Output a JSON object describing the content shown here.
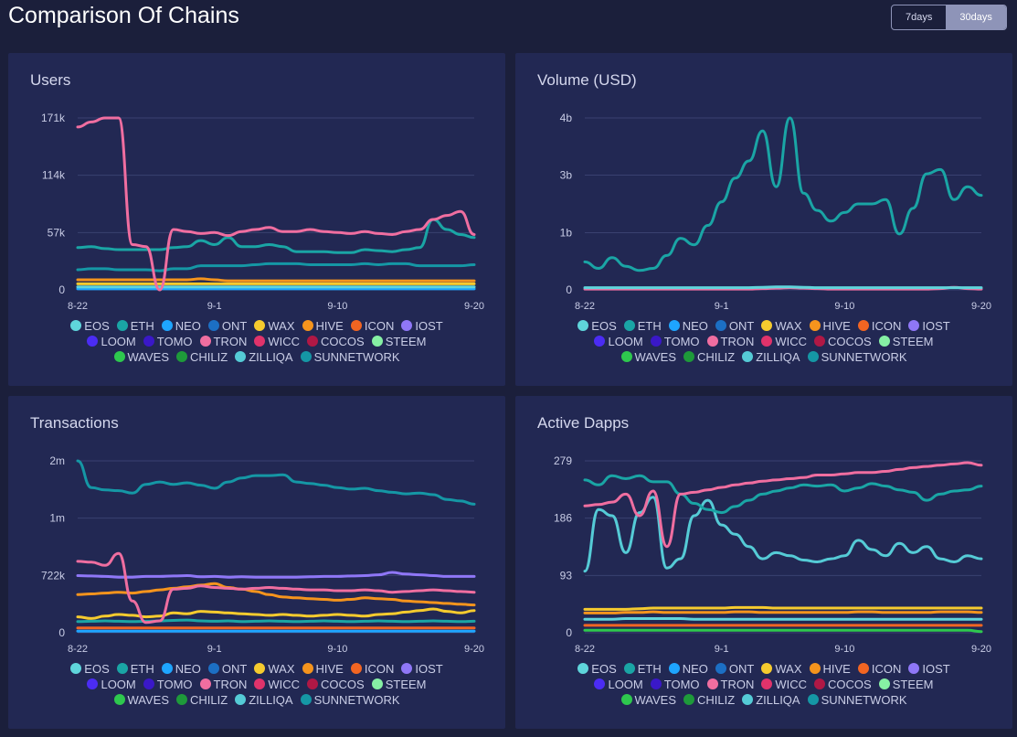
{
  "header": {
    "title": "Comparison Of Chains",
    "range_options": [
      {
        "label": "7days",
        "active": false
      },
      {
        "label": "30days",
        "active": true
      }
    ]
  },
  "legend": [
    {
      "name": "EOS",
      "color": "#5fd5db"
    },
    {
      "name": "ETH",
      "color": "#1aa5a5"
    },
    {
      "name": "NEO",
      "color": "#1ea5ff"
    },
    {
      "name": "ONT",
      "color": "#1c6fc4"
    },
    {
      "name": "WAX",
      "color": "#f6cb2e"
    },
    {
      "name": "HIVE",
      "color": "#f5941d"
    },
    {
      "name": "ICON",
      "color": "#f26522"
    },
    {
      "name": "IOST",
      "color": "#8f77f7"
    },
    {
      "name": "LOOM",
      "color": "#4b2cf4"
    },
    {
      "name": "TOMO",
      "color": "#3a18c8"
    },
    {
      "name": "TRON",
      "color": "#f06ea0"
    },
    {
      "name": "WICC",
      "color": "#e0336b"
    },
    {
      "name": "COCOS",
      "color": "#b01845"
    },
    {
      "name": "STEEM",
      "color": "#86f0a4"
    },
    {
      "name": "WAVES",
      "color": "#2ec84e"
    },
    {
      "name": "CHILIZ",
      "color": "#1e9a3a"
    },
    {
      "name": "ZILLIQA",
      "color": "#55cbd6"
    },
    {
      "name": "SUNNETWORK",
      "color": "#1597a5"
    }
  ],
  "chart_data": [
    {
      "type": "line",
      "title": "Users",
      "x_ticks": [
        "8-22",
        "9-1",
        "9-10",
        "9-20"
      ],
      "x_tick_positions": [
        0,
        10,
        19,
        29
      ],
      "x_count": 30,
      "y_ticks": [
        "171k",
        "114k",
        "57k",
        "0"
      ],
      "y_tick_values": [
        171000,
        114000,
        57000,
        0
      ],
      "ylim": [
        0,
        171000
      ],
      "series": [
        {
          "name": "TRON",
          "values": [
            162000,
            167000,
            171000,
            171000,
            45000,
            43000,
            0,
            60000,
            58000,
            56000,
            57000,
            54000,
            58000,
            60000,
            62000,
            58000,
            58000,
            60000,
            58000,
            57000,
            56000,
            58000,
            56000,
            55000,
            58000,
            60000,
            70000,
            74000,
            78000,
            55000
          ]
        },
        {
          "name": "ETH",
          "values": [
            42000,
            43000,
            41000,
            40000,
            40000,
            40000,
            40000,
            42000,
            43000,
            49000,
            45000,
            52000,
            43000,
            43000,
            45000,
            43000,
            38000,
            38000,
            38000,
            37000,
            37000,
            40000,
            39000,
            38000,
            40000,
            42000,
            70000,
            60000,
            55000,
            52000
          ]
        },
        {
          "name": "SUNNETWORK",
          "values": [
            20000,
            21000,
            21000,
            20000,
            20000,
            20000,
            19000,
            21000,
            21000,
            24000,
            24000,
            24000,
            24000,
            25000,
            26000,
            26000,
            26000,
            25000,
            25000,
            25000,
            25000,
            26000,
            25000,
            26000,
            26000,
            24000,
            24000,
            24000,
            24000,
            25000
          ]
        },
        {
          "name": "HIVE",
          "values": [
            10000,
            10000,
            10000,
            10000,
            10000,
            10000,
            10000,
            10000,
            10000,
            11000,
            10000,
            9000,
            9000,
            9000,
            9000,
            9000,
            9000,
            9000,
            9000,
            9000,
            9000,
            9000,
            9000,
            9000,
            9000,
            9000,
            9000,
            9000,
            9000,
            9000
          ]
        },
        {
          "name": "WAX",
          "values": [
            6000,
            6000,
            6000,
            6000,
            6000,
            6000,
            6000,
            6000,
            6000,
            6000,
            6000,
            6000,
            6000,
            6000,
            6000,
            6000,
            6000,
            6000,
            6000,
            6000,
            6000,
            6000,
            6000,
            6000,
            6000,
            6000,
            6000,
            6000,
            6000,
            6000
          ]
        },
        {
          "name": "EOS",
          "values": [
            3000,
            3000,
            3000,
            3000,
            3000,
            3000,
            3000,
            3000,
            3000,
            3000,
            3000,
            3000,
            3000,
            3000,
            3000,
            3000,
            3000,
            3000,
            3000,
            3000,
            3000,
            3000,
            3000,
            3000,
            3000,
            3000,
            3000,
            3000,
            3000,
            3000
          ]
        },
        {
          "name": "NEO",
          "values": [
            1000,
            1000,
            1000,
            1000,
            1000,
            1000,
            1000,
            1000,
            1000,
            1000,
            1000,
            1000,
            1000,
            1000,
            1000,
            1000,
            1000,
            1000,
            1000,
            1000,
            1000,
            1000,
            1000,
            1000,
            1000,
            1000,
            1000,
            1000,
            1000,
            1000
          ]
        }
      ]
    },
    {
      "type": "line",
      "title": "Volume (USD)",
      "x_ticks": [
        "8-22",
        "9-1",
        "9-10",
        "9-20"
      ],
      "x_tick_positions": [
        0,
        10,
        19,
        29
      ],
      "x_count": 30,
      "y_ticks": [
        "4b",
        "3b",
        "1b",
        "0"
      ],
      "y_tick_values": [
        4,
        2.67,
        1.33,
        0
      ],
      "ylim": [
        0,
        4
      ],
      "series": [
        {
          "name": "ETH",
          "values": [
            0.65,
            0.5,
            0.75,
            0.55,
            0.45,
            0.5,
            0.8,
            1.2,
            1.05,
            1.5,
            2.05,
            2.6,
            3.0,
            3.7,
            2.4,
            4.0,
            2.25,
            1.85,
            1.6,
            1.8,
            2.0,
            2.0,
            2.1,
            1.3,
            1.9,
            2.7,
            2.8,
            2.1,
            2.4,
            2.2
          ]
        },
        {
          "name": "EOS",
          "values": [
            0.05,
            0.05,
            0.05,
            0.05,
            0.05,
            0.05,
            0.05,
            0.05,
            0.05,
            0.05,
            0.05,
            0.05,
            0.05,
            0.06,
            0.07,
            0.07,
            0.06,
            0.05,
            0.05,
            0.05,
            0.05,
            0.05,
            0.05,
            0.05,
            0.05,
            0.05,
            0.05,
            0.05,
            0.05,
            0.05
          ]
        },
        {
          "name": "TRON",
          "values": [
            0.02,
            0.02,
            0.02,
            0.02,
            0.02,
            0.02,
            0.02,
            0.02,
            0.02,
            0.02,
            0.02,
            0.02,
            0.02,
            0.03,
            0.04,
            0.05,
            0.04,
            0.03,
            0.02,
            0.02,
            0.02,
            0.02,
            0.02,
            0.02,
            0.02,
            0.02,
            0.03,
            0.06,
            0.03,
            0.02
          ]
        }
      ]
    },
    {
      "type": "line",
      "title": "Transactions",
      "x_ticks": [
        "8-22",
        "9-1",
        "9-10",
        "9-20"
      ],
      "x_tick_positions": [
        0,
        10,
        19,
        29
      ],
      "x_count": 30,
      "y_ticks": [
        "2m",
        "1m",
        "722k",
        "0"
      ],
      "y_tick_values": [
        2166000,
        1444000,
        722000,
        0
      ],
      "ylim": [
        0,
        2166000
      ],
      "series": [
        {
          "name": "SUNNETWORK",
          "values": [
            2166000,
            1830000,
            1800000,
            1790000,
            1760000,
            1870000,
            1900000,
            1870000,
            1890000,
            1860000,
            1820000,
            1900000,
            1950000,
            1980000,
            1980000,
            1990000,
            1900000,
            1880000,
            1860000,
            1830000,
            1810000,
            1820000,
            1790000,
            1770000,
            1750000,
            1760000,
            1740000,
            1680000,
            1660000,
            1620000
          ]
        },
        {
          "name": "TRON",
          "values": [
            900000,
            890000,
            850000,
            1000000,
            400000,
            130000,
            150000,
            550000,
            560000,
            590000,
            570000,
            560000,
            550000,
            560000,
            570000,
            560000,
            550000,
            540000,
            540000,
            530000,
            530000,
            540000,
            530000,
            510000,
            520000,
            530000,
            540000,
            530000,
            520000,
            510000
          ]
        },
        {
          "name": "IOST",
          "values": [
            720000,
            715000,
            710000,
            700000,
            700000,
            710000,
            710000,
            715000,
            720000,
            705000,
            710000,
            700000,
            705000,
            700000,
            700000,
            700000,
            700000,
            705000,
            710000,
            710000,
            715000,
            720000,
            730000,
            760000,
            740000,
            730000,
            720000,
            710000,
            710000,
            710000
          ]
        },
        {
          "name": "HIVE",
          "values": [
            480000,
            490000,
            500000,
            510000,
            500000,
            520000,
            540000,
            560000,
            580000,
            600000,
            620000,
            570000,
            550000,
            520000,
            480000,
            450000,
            440000,
            430000,
            420000,
            410000,
            420000,
            440000,
            430000,
            420000,
            400000,
            390000,
            380000,
            370000,
            360000,
            350000
          ]
        },
        {
          "name": "WAX",
          "values": [
            200000,
            180000,
            210000,
            230000,
            220000,
            200000,
            210000,
            250000,
            240000,
            270000,
            260000,
            250000,
            240000,
            230000,
            220000,
            230000,
            220000,
            210000,
            220000,
            230000,
            220000,
            210000,
            230000,
            240000,
            260000,
            280000,
            300000,
            270000,
            250000,
            280000
          ]
        },
        {
          "name": "ETH",
          "values": [
            140000,
            145000,
            150000,
            145000,
            140000,
            145000,
            150000,
            155000,
            160000,
            150000,
            145000,
            150000,
            140000,
            145000,
            150000,
            145000,
            140000,
            145000,
            150000,
            145000,
            140000,
            145000,
            150000,
            145000,
            140000,
            145000,
            150000,
            145000,
            140000,
            145000
          ]
        },
        {
          "name": "ICON",
          "values": [
            60000,
            60000,
            60000,
            60000,
            60000,
            60000,
            60000,
            60000,
            60000,
            60000,
            60000,
            60000,
            60000,
            60000,
            60000,
            60000,
            60000,
            60000,
            60000,
            60000,
            60000,
            60000,
            60000,
            60000,
            60000,
            60000,
            60000,
            60000,
            60000,
            60000
          ]
        },
        {
          "name": "NEO",
          "values": [
            20000,
            20000,
            20000,
            20000,
            20000,
            20000,
            20000,
            20000,
            20000,
            20000,
            20000,
            20000,
            20000,
            20000,
            20000,
            20000,
            20000,
            20000,
            20000,
            20000,
            20000,
            20000,
            20000,
            20000,
            20000,
            20000,
            20000,
            20000,
            20000,
            20000
          ]
        }
      ]
    },
    {
      "type": "line",
      "title": "Active Dapps",
      "x_ticks": [
        "8-22",
        "9-1",
        "9-10",
        "9-20"
      ],
      "x_tick_positions": [
        0,
        10,
        19,
        29
      ],
      "x_count": 30,
      "y_ticks": [
        "279",
        "186",
        "93",
        "0"
      ],
      "y_tick_values": [
        279,
        186,
        93,
        0
      ],
      "ylim": [
        0,
        279
      ],
      "series": [
        {
          "name": "TRON",
          "values": [
            206,
            208,
            212,
            225,
            190,
            230,
            140,
            225,
            228,
            232,
            236,
            240,
            243,
            246,
            248,
            250,
            252,
            256,
            256,
            258,
            260,
            260,
            262,
            265,
            268,
            270,
            272,
            274,
            276,
            272
          ]
        },
        {
          "name": "ETH",
          "values": [
            248,
            240,
            255,
            250,
            255,
            245,
            245,
            225,
            210,
            200,
            195,
            205,
            215,
            225,
            230,
            235,
            240,
            238,
            240,
            230,
            235,
            242,
            238,
            232,
            228,
            215,
            225,
            230,
            232,
            238
          ]
        },
        {
          "name": "ZILLIQA",
          "values": [
            100,
            200,
            190,
            130,
            195,
            220,
            105,
            120,
            190,
            215,
            175,
            160,
            140,
            120,
            130,
            125,
            118,
            115,
            120,
            125,
            150,
            135,
            125,
            145,
            130,
            140,
            120,
            115,
            125,
            120
          ]
        },
        {
          "name": "WAX",
          "values": [
            38,
            38,
            38,
            38,
            39,
            40,
            40,
            40,
            40,
            40,
            40,
            41,
            41,
            41,
            40,
            40,
            40,
            40,
            40,
            40,
            40,
            40,
            40,
            40,
            40,
            40,
            40,
            40,
            40,
            40
          ]
        },
        {
          "name": "HIVE",
          "values": [
            32,
            32,
            32,
            33,
            33,
            34,
            33,
            33,
            33,
            33,
            33,
            34,
            34,
            33,
            33,
            33,
            33,
            33,
            33,
            33,
            34,
            34,
            33,
            33,
            33,
            33,
            34,
            34,
            34,
            33
          ]
        },
        {
          "name": "EOS",
          "values": [
            22,
            22,
            22,
            23,
            23,
            23,
            23,
            23,
            22,
            22,
            22,
            22,
            22,
            22,
            22,
            22,
            22,
            22,
            22,
            22,
            22,
            22,
            22,
            22,
            22,
            22,
            22,
            22,
            22,
            22
          ]
        },
        {
          "name": "ICON",
          "values": [
            12,
            12,
            12,
            12,
            12,
            12,
            12,
            12,
            12,
            12,
            12,
            12,
            12,
            12,
            12,
            12,
            12,
            12,
            12,
            12,
            12,
            12,
            12,
            12,
            12,
            12,
            12,
            12,
            12,
            12
          ]
        },
        {
          "name": "WAVES",
          "values": [
            4,
            4,
            4,
            4,
            4,
            4,
            4,
            4,
            4,
            4,
            4,
            4,
            4,
            4,
            4,
            4,
            4,
            4,
            4,
            4,
            4,
            4,
            4,
            4,
            4,
            4,
            4,
            4,
            4,
            2
          ]
        }
      ]
    }
  ]
}
